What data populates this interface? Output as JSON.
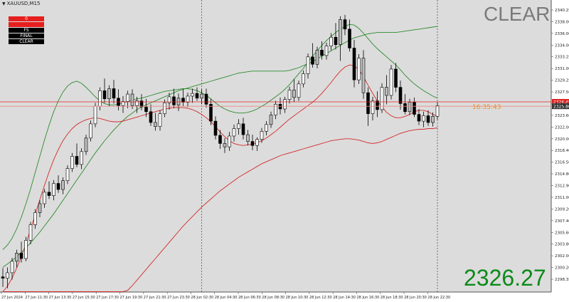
{
  "chart_data": {
    "type": "candlestick",
    "symbol": "XAUUSD,M15",
    "y_ticks": [
      "2340.25",
      "2338.00",
      "2336.00",
      "2334.00",
      "2333.25",
      "2331.00",
      "2329.25",
      "2327.50",
      "2325.45",
      "2323.60",
      "2322.00",
      "2320.00",
      "2318.40",
      "2316.50",
      "2314.80",
      "2312.90",
      "2311.00",
      "2309.20",
      "2307.40",
      "2305.60",
      "2303.80",
      "2302.00",
      "2300.20",
      "2298.35"
    ],
    "x_ticks": [
      "27 Jun 2024",
      "27 Jun 11:30",
      "27 Jun 13:30",
      "27 Jun 15:30",
      "27 Jun 17:30",
      "27 Jun 19:30",
      "27 Jun 21:30",
      "27 Jun 23:30",
      "28 Jun 02:30",
      "28 Jun 04:30",
      "28 Jun 06:30",
      "28 Jun 08:30",
      "28 Jun 10:30",
      "28 Jun 12:30",
      "28 Jun 14:30",
      "28 Jun 16:30",
      "28 Jun 18:30",
      "28 Jun 20:30",
      "28 Jun 22:30"
    ],
    "ylim": [
      2298.35,
      2341.5
    ],
    "candles": [
      [
        2300.6,
        2301.9,
        2299.1,
        2300.4
      ],
      [
        2300.4,
        2302.0,
        2298.9,
        2301.2
      ],
      [
        2301.2,
        2303.4,
        2300.2,
        2302.9
      ],
      [
        2302.9,
        2304.6,
        2302.0,
        2304.1
      ],
      [
        2304.1,
        2305.8,
        2302.7,
        2303.3
      ],
      [
        2303.3,
        2306.5,
        2302.9,
        2306.0
      ],
      [
        2306.0,
        2308.7,
        2305.4,
        2308.3
      ],
      [
        2308.3,
        2310.6,
        2307.7,
        2310.1
      ],
      [
        2310.1,
        2311.9,
        2309.4,
        2311.4
      ],
      [
        2311.4,
        2313.6,
        2310.8,
        2313.1
      ],
      [
        2313.1,
        2314.7,
        2312.1,
        2312.6
      ],
      [
        2312.6,
        2314.9,
        2311.9,
        2314.4
      ],
      [
        2314.4,
        2315.6,
        2313.0,
        2313.5
      ],
      [
        2313.5,
        2315.3,
        2312.8,
        2314.8
      ],
      [
        2314.8,
        2317.1,
        2314.3,
        2316.6
      ],
      [
        2316.6,
        2318.9,
        2316.1,
        2318.4
      ],
      [
        2318.4,
        2320.3,
        2316.8,
        2317.2
      ],
      [
        2317.2,
        2319.6,
        2316.5,
        2319.1
      ],
      [
        2319.1,
        2321.6,
        2318.6,
        2321.1
      ],
      [
        2321.1,
        2323.7,
        2320.6,
        2323.2
      ],
      [
        2323.2,
        2326.3,
        2322.7,
        2325.8
      ],
      [
        2325.8,
        2328.6,
        2325.2,
        2328.1
      ],
      [
        2328.1,
        2329.9,
        2326.3,
        2326.9
      ],
      [
        2326.9,
        2328.9,
        2325.8,
        2328.4
      ],
      [
        2328.4,
        2329.7,
        2326.2,
        2327.0
      ],
      [
        2327.0,
        2328.3,
        2325.2,
        2325.9
      ],
      [
        2325.9,
        2327.3,
        2324.8,
        2326.5
      ],
      [
        2326.5,
        2328.1,
        2325.5,
        2327.6
      ],
      [
        2327.6,
        2328.3,
        2325.4,
        2325.9
      ],
      [
        2325.9,
        2327.2,
        2324.8,
        2326.6
      ],
      [
        2326.6,
        2327.6,
        2325.2,
        2325.7
      ],
      [
        2325.7,
        2326.9,
        2324.2,
        2325.0
      ],
      [
        2325.0,
        2326.1,
        2322.9,
        2323.4
      ],
      [
        2323.4,
        2324.8,
        2322.2,
        2322.8
      ],
      [
        2322.8,
        2325.2,
        2322.2,
        2324.7
      ],
      [
        2324.7,
        2326.8,
        2324.2,
        2326.3
      ],
      [
        2326.3,
        2327.8,
        2325.3,
        2327.2
      ],
      [
        2327.2,
        2328.4,
        2325.5,
        2326.0
      ],
      [
        2326.0,
        2327.7,
        2325.1,
        2327.0
      ],
      [
        2327.0,
        2328.3,
        2325.8,
        2326.4
      ],
      [
        2326.4,
        2327.8,
        2325.7,
        2327.3
      ],
      [
        2327.3,
        2328.4,
        2326.3,
        2327.7
      ],
      [
        2327.7,
        2328.6,
        2326.6,
        2327.0
      ],
      [
        2327.0,
        2328.3,
        2326.1,
        2327.6
      ],
      [
        2327.6,
        2328.4,
        2325.6,
        2326.1
      ],
      [
        2326.1,
        2326.9,
        2323.0,
        2323.6
      ],
      [
        2323.6,
        2324.3,
        2320.9,
        2321.5
      ],
      [
        2321.5,
        2322.3,
        2319.5,
        2320.3
      ],
      [
        2320.3,
        2321.1,
        2318.9,
        2319.8
      ],
      [
        2319.8,
        2322.0,
        2319.2,
        2321.4
      ],
      [
        2321.4,
        2323.1,
        2320.6,
        2322.5
      ],
      [
        2322.5,
        2323.9,
        2321.6,
        2323.2
      ],
      [
        2323.2,
        2324.1,
        2320.9,
        2321.6
      ],
      [
        2321.6,
        2322.3,
        2320.0,
        2320.6
      ],
      [
        2320.6,
        2321.6,
        2319.3,
        2320.0
      ],
      [
        2320.0,
        2321.2,
        2319.2,
        2320.9
      ],
      [
        2320.9,
        2322.6,
        2320.4,
        2322.1
      ],
      [
        2322.1,
        2323.6,
        2321.5,
        2323.1
      ],
      [
        2323.1,
        2325.0,
        2322.6,
        2324.5
      ],
      [
        2324.5,
        2326.6,
        2323.9,
        2326.1
      ],
      [
        2326.1,
        2327.1,
        2324.6,
        2325.4
      ],
      [
        2325.4,
        2327.2,
        2324.8,
        2326.8
      ],
      [
        2326.8,
        2328.7,
        2326.2,
        2328.2
      ],
      [
        2328.2,
        2329.8,
        2326.4,
        2327.1
      ],
      [
        2327.1,
        2329.6,
        2326.6,
        2329.1
      ],
      [
        2329.1,
        2331.1,
        2328.6,
        2330.6
      ],
      [
        2330.6,
        2333.6,
        2329.9,
        2333.1
      ],
      [
        2333.1,
        2335.1,
        2331.5,
        2332.0
      ],
      [
        2332.0,
        2334.6,
        2331.4,
        2334.1
      ],
      [
        2334.1,
        2335.4,
        2332.7,
        2333.3
      ],
      [
        2333.3,
        2335.2,
        2332.7,
        2334.7
      ],
      [
        2334.7,
        2336.6,
        2334.1,
        2336.0
      ],
      [
        2336.0,
        2338.1,
        2334.2,
        2334.9
      ],
      [
        2334.9,
        2339.1,
        2332.5,
        2338.6
      ],
      [
        2338.6,
        2339.3,
        2336.3,
        2337.2
      ],
      [
        2337.2,
        2338.6,
        2333.9,
        2334.4
      ],
      [
        2334.4,
        2335.6,
        2328.6,
        2329.7
      ],
      [
        2329.7,
        2333.5,
        2329.1,
        2332.9
      ],
      [
        2332.9,
        2334.1,
        2326.9,
        2327.8
      ],
      [
        2327.8,
        2328.6,
        2322.9,
        2324.7
      ],
      [
        2324.7,
        2327.2,
        2323.7,
        2326.6
      ],
      [
        2326.6,
        2328.0,
        2324.2,
        2325.3
      ],
      [
        2325.3,
        2329.2,
        2324.8,
        2328.6
      ],
      [
        2328.6,
        2330.4,
        2326.1,
        2327.4
      ],
      [
        2327.4,
        2331.9,
        2326.8,
        2331.3
      ],
      [
        2331.3,
        2332.2,
        2327.9,
        2328.6
      ],
      [
        2328.6,
        2329.6,
        2325.3,
        2326.2
      ],
      [
        2326.2,
        2327.6,
        2324.6,
        2325.0
      ],
      [
        2325.0,
        2326.9,
        2324.5,
        2326.4
      ],
      [
        2326.4,
        2327.1,
        2324.2,
        2324.6
      ],
      [
        2324.6,
        2325.4,
        2323.0,
        2323.6
      ],
      [
        2323.6,
        2325.0,
        2322.7,
        2324.4
      ],
      [
        2324.4,
        2325.2,
        2322.9,
        2323.4
      ],
      [
        2323.4,
        2324.9,
        2322.8,
        2324.3
      ],
      [
        2324.3,
        2326.4,
        2323.8,
        2325.9
      ]
    ],
    "lines": [
      {
        "color": "#2e8b2e",
        "values": [
          2304.6,
          2305.3,
          2306.3,
          2307.7,
          2309.4,
          2311.4,
          2313.6,
          2316.0,
          2318.4,
          2320.8,
          2323.0,
          2325.0,
          2326.6,
          2327.9,
          2328.8,
          2329.3,
          2329.5,
          2329.2,
          2328.6,
          2327.9,
          2327.2,
          2326.6,
          2326.2,
          2326.0,
          2326.0,
          2326.1,
          2326.3,
          2326.5,
          2326.7,
          2326.9,
          2327.0,
          2327.2,
          2327.4,
          2327.6,
          2327.8,
          2328.0,
          2328.1,
          2328.2,
          2328.3,
          2328.4,
          2328.4,
          2328.3,
          2328.1,
          2327.8,
          2327.4,
          2326.9,
          2326.3,
          2325.8,
          2325.4,
          2325.1,
          2324.9,
          2324.8,
          2324.8,
          2324.9,
          2325.1,
          2325.4,
          2325.8,
          2326.2,
          2326.7,
          2327.2,
          2327.7,
          2328.3,
          2329.0,
          2329.8,
          2330.6,
          2331.4,
          2332.3,
          2333.2,
          2334.0,
          2334.8,
          2335.5,
          2336.1,
          2336.7,
          2337.2,
          2337.6,
          2337.9,
          2337.8,
          2337.3,
          2336.6,
          2335.8,
          2335.0,
          2334.3,
          2333.7,
          2333.1,
          2332.5,
          2331.9,
          2331.2,
          2330.4,
          2329.7,
          2329.1,
          2328.6,
          2328.1,
          2327.7,
          2327.3,
          2327.0
        ]
      },
      {
        "color": "#2e8b2e",
        "values": [
          2302.0,
          2302.5,
          2303.0,
          2303.6,
          2304.2,
          2304.9,
          2305.6,
          2306.4,
          2307.2,
          2308.1,
          2309.0,
          2309.9,
          2310.9,
          2311.9,
          2312.9,
          2313.9,
          2314.9,
          2315.9,
          2316.9,
          2317.9,
          2318.9,
          2319.8,
          2320.7,
          2321.5,
          2322.3,
          2323.0,
          2323.7,
          2324.3,
          2324.8,
          2325.3,
          2325.7,
          2326.0,
          2326.3,
          2326.6,
          2326.9,
          2327.2,
          2327.5,
          2327.8,
          2328.1,
          2328.3,
          2328.5,
          2328.7,
          2328.9,
          2329.1,
          2329.3,
          2329.5,
          2329.7,
          2329.9,
          2330.1,
          2330.3,
          2330.5,
          2330.7,
          2330.8,
          2330.9,
          2331.0,
          2331.0,
          2331.0,
          2331.0,
          2331.0,
          2331.0,
          2331.0,
          2331.0,
          2331.1,
          2331.3,
          2331.5,
          2331.8,
          2332.1,
          2332.4,
          2332.8,
          2333.2,
          2333.6,
          2334.0,
          2334.4,
          2334.8,
          2335.2,
          2335.6,
          2335.9,
          2336.1,
          2336.3,
          2336.5,
          2336.6,
          2336.7,
          2336.7,
          2336.7,
          2336.7,
          2336.7,
          2336.8,
          2336.9,
          2337.0,
          2337.1,
          2337.2,
          2337.3,
          2337.4,
          2337.5,
          2337.6
        ]
      },
      {
        "color": "#d42a2a",
        "values": [
          2298.4,
          2299.2,
          2300.4,
          2301.9,
          2303.6,
          2305.5,
          2307.6,
          2309.8,
          2312.0,
          2314.1,
          2316.1,
          2317.9,
          2319.4,
          2320.7,
          2321.7,
          2322.5,
          2323.1,
          2323.5,
          2323.8,
          2324.0,
          2324.1,
          2324.0,
          2323.8,
          2323.6,
          2323.5,
          2323.5,
          2323.6,
          2323.8,
          2324.0,
          2324.2,
          2324.4,
          2324.6,
          2324.8,
          2325.0,
          2325.2,
          2325.4,
          2325.5,
          2325.6,
          2325.6,
          2325.6,
          2325.5,
          2325.3,
          2325.0,
          2324.6,
          2324.1,
          2323.5,
          2322.8,
          2322.0,
          2321.3,
          2320.7,
          2320.3,
          2320.1,
          2320.0,
          2320.1,
          2320.2,
          2320.4,
          2320.7,
          2321.1,
          2321.6,
          2322.1,
          2322.7,
          2323.3,
          2323.9,
          2324.4,
          2324.9,
          2325.4,
          2325.9,
          2326.4,
          2327.0,
          2327.7,
          2328.5,
          2329.3,
          2330.2,
          2331.0,
          2331.6,
          2331.9,
          2331.8,
          2331.2,
          2330.2,
          2328.9,
          2327.7,
          2326.6,
          2325.7,
          2324.9,
          2324.4,
          2324.1,
          2324.1,
          2324.3,
          2324.6,
          2325.0,
          2325.2,
          2325.2,
          2325.0,
          2324.6,
          2324.3
        ]
      },
      {
        "color": "#d42a2a",
        "values": [
          2298.4,
          2298.4,
          2298.4,
          2298.4,
          2298.4,
          2298.4,
          2298.4,
          2298.4,
          2298.4,
          2298.4,
          2298.4,
          2298.4,
          2298.4,
          2298.4,
          2298.4,
          2298.4,
          2298.4,
          2298.4,
          2298.4,
          2298.4,
          2298.4,
          2298.4,
          2298.4,
          2298.4,
          2298.4,
          2298.4,
          2298.4,
          2298.6,
          2299.3,
          2300.1,
          2300.9,
          2301.7,
          2302.5,
          2303.3,
          2304.1,
          2304.9,
          2305.7,
          2306.5,
          2307.3,
          2308.1,
          2308.8,
          2309.5,
          2310.2,
          2310.9,
          2311.5,
          2312.1,
          2312.7,
          2313.3,
          2313.8,
          2314.3,
          2314.8,
          2315.3,
          2315.7,
          2316.1,
          2316.5,
          2316.9,
          2317.3,
          2317.6,
          2317.9,
          2318.2,
          2318.5,
          2318.7,
          2318.9,
          2319.1,
          2319.3,
          2319.5,
          2319.7,
          2319.9,
          2320.1,
          2320.3,
          2320.5,
          2320.7,
          2320.8,
          2320.9,
          2321.0,
          2321.0,
          2320.9,
          2320.8,
          2320.6,
          2320.4,
          2320.3,
          2320.4,
          2320.6,
          2320.9,
          2321.2,
          2321.5,
          2321.8,
          2322.0,
          2322.2,
          2322.3,
          2322.4,
          2322.4,
          2322.5,
          2322.5,
          2322.6
        ]
      }
    ],
    "hlines": [
      {
        "value": 2326.45,
        "color": "#e02020",
        "tag": "2326.45"
      },
      {
        "value": 2325.8,
        "color": "#ffffff",
        "tag": "2325.80"
      }
    ],
    "vlines": [
      {
        "index": 43
      },
      {
        "index": 94
      }
    ],
    "colors": {
      "up": "#ffffff",
      "down": "#000000",
      "alt": "#bdbdbd",
      "bg": "#dcdcdc",
      "axis_bg": "#ffffff"
    }
  },
  "panel": {
    "buttons": [
      {
        "label": "0",
        "color": "red"
      },
      {
        "label": "",
        "color": "red"
      },
      {
        "label": "FS",
        "color": "black"
      },
      {
        "label": "FINAL",
        "color": "black"
      },
      {
        "label": "CLEAR",
        "color": "black"
      }
    ]
  },
  "overlay": {
    "mode_label": "CLEAR",
    "price_label": "2326.27",
    "timer": "16:35:43"
  }
}
